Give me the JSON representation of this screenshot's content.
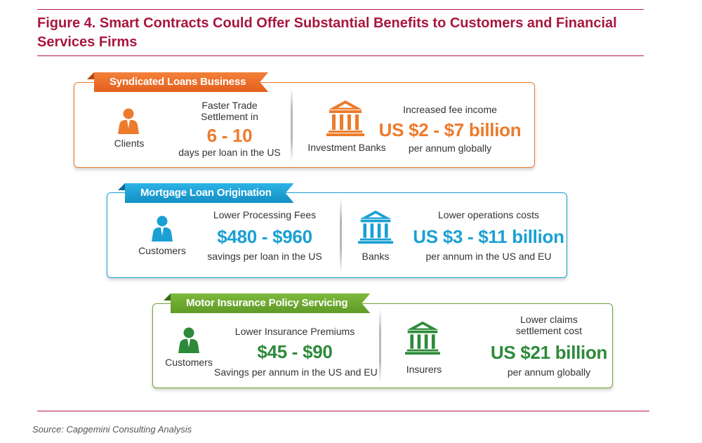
{
  "figure": {
    "title": "Figure 4. Smart Contracts Could Offer Substantial Benefits to Customers and Financial Services Firms",
    "source": "Source: Capgemini Consulting Analysis"
  },
  "colors": {
    "accent": "#a8163f",
    "syndicated": "#ec7b2c",
    "mortgage": "#1aa0d4",
    "motor": "#6da531"
  },
  "panels": [
    {
      "banner": "Syndicated Loans Business",
      "left": {
        "actor_icon": "person-icon",
        "actor": "Clients",
        "headline_lines": [
          "Faster Trade",
          "Settlement in"
        ],
        "value": "6 - 10",
        "sub": "days per loan in the US"
      },
      "right": {
        "actor_icon": "bank-building-icon",
        "actor": "Investment Banks",
        "headline_lines": [
          "Increased fee income"
        ],
        "value": "US $2 - $7 billion",
        "sub": "per annum globally"
      }
    },
    {
      "banner": "Mortgage Loan Origination",
      "left": {
        "actor_icon": "person-icon",
        "actor": "Customers",
        "headline_lines": [
          "Lower Processing Fees"
        ],
        "value": "$480 - $960",
        "sub": "savings per loan in the US"
      },
      "right": {
        "actor_icon": "bank-building-icon",
        "actor": "Banks",
        "headline_lines": [
          "Lower operations costs"
        ],
        "value": "US $3 - $11 billion",
        "sub": "per annum in the US and EU"
      }
    },
    {
      "banner": "Motor Insurance Policy Servicing",
      "left": {
        "actor_icon": "person-icon",
        "actor": "Customers",
        "headline_lines": [
          "Lower Insurance Premiums"
        ],
        "value": "$45 - $90",
        "sub": "Savings per annum in the US and EU"
      },
      "right": {
        "actor_icon": "bank-building-icon",
        "actor": "Insurers",
        "headline_lines": [
          "Lower claims",
          "settlement cost"
        ],
        "value": "US $21 billion",
        "sub": "per annum globally"
      }
    }
  ]
}
